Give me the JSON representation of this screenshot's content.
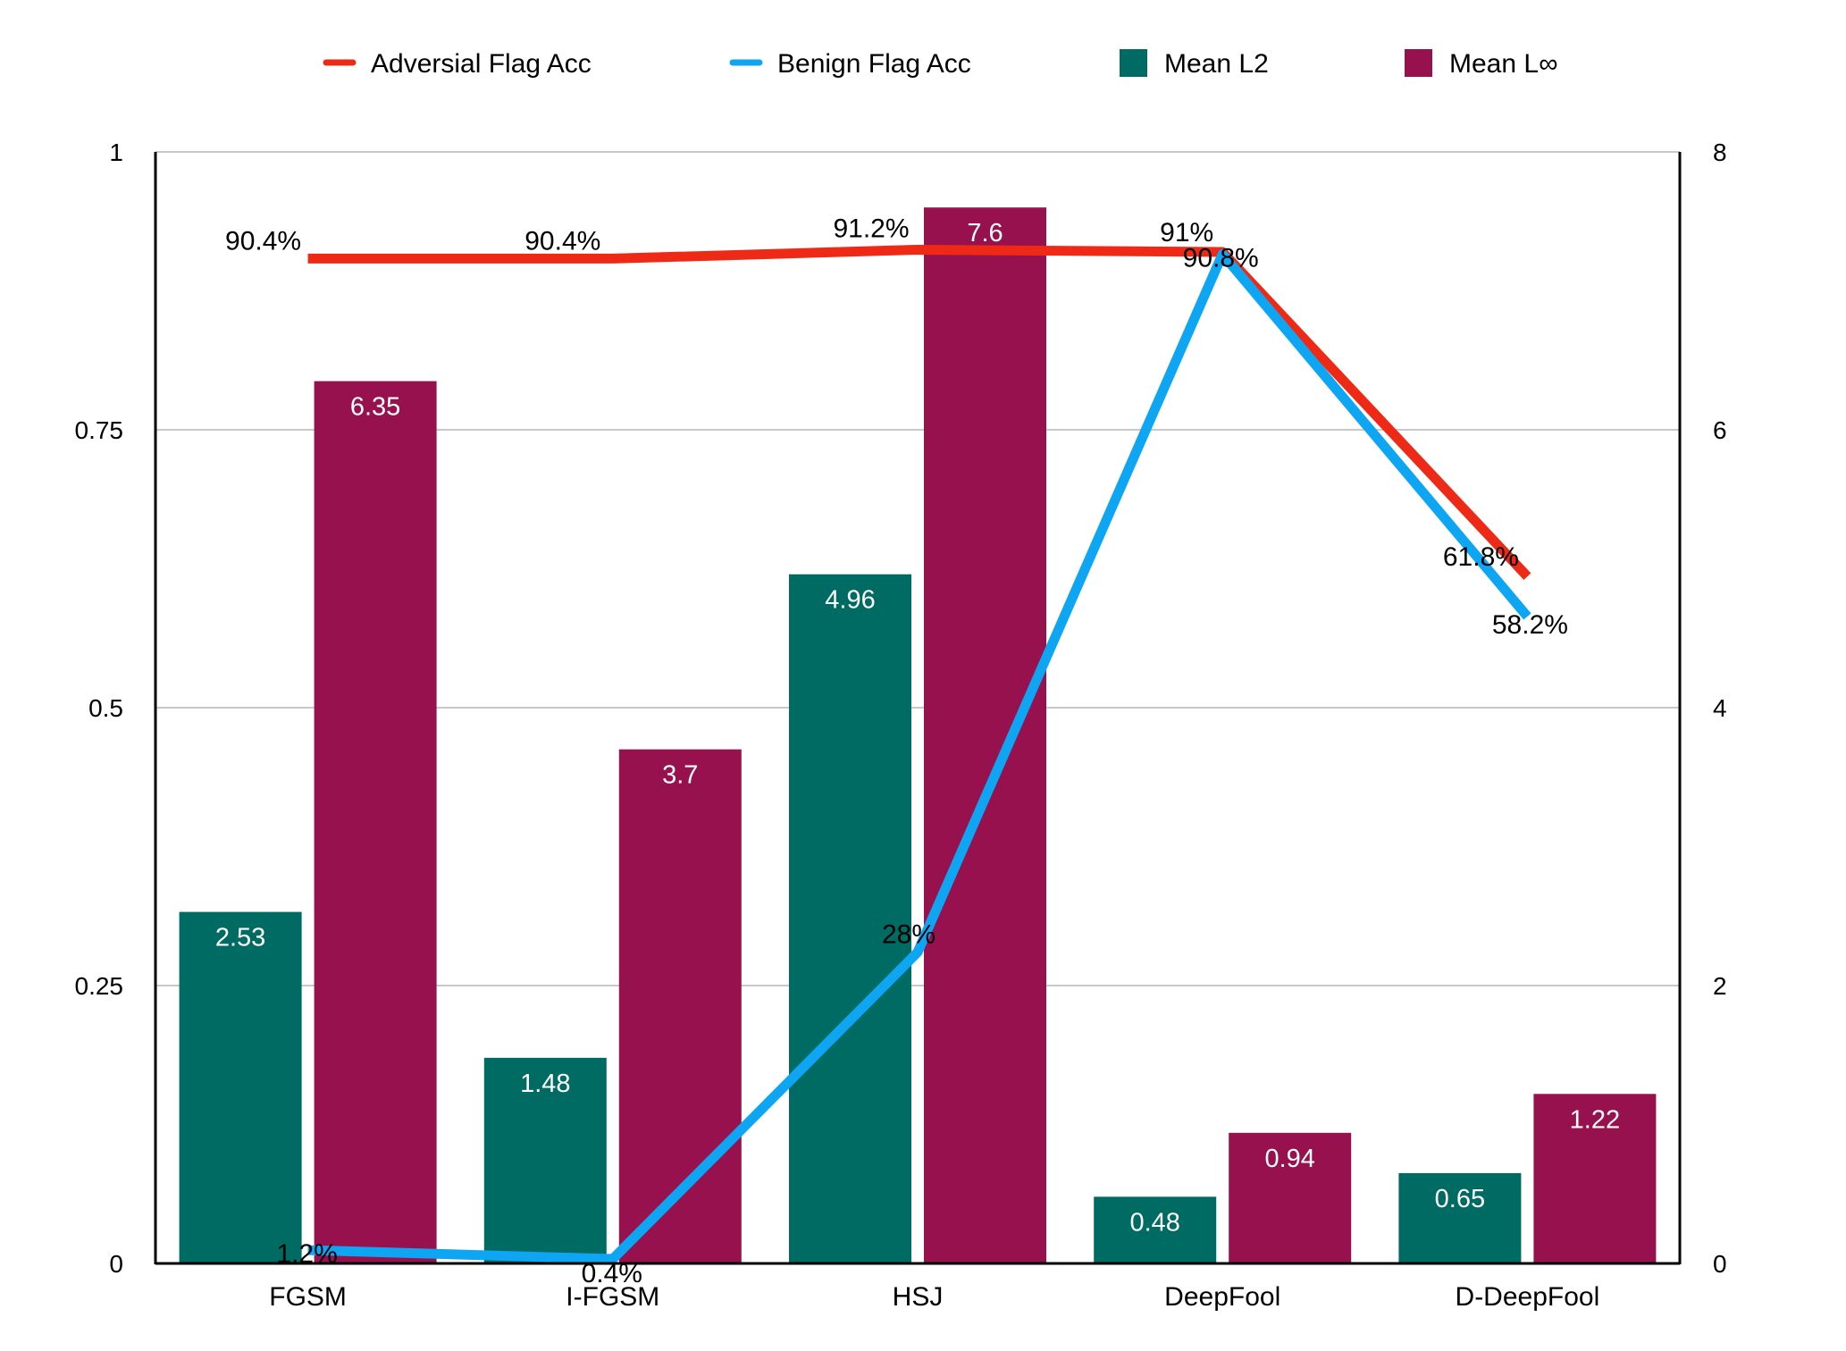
{
  "chart_data": {
    "type": "bar",
    "categories": [
      "FGSM",
      "I-FGSM",
      "HSJ",
      "DeepFool",
      "D-DeepFool"
    ],
    "left_axis": {
      "range": [
        0,
        1
      ],
      "ticks": [
        "0",
        "0.25",
        "0.5",
        "0.75",
        "1"
      ]
    },
    "right_axis": {
      "range": [
        0,
        8
      ],
      "ticks": [
        "0",
        "2",
        "4",
        "6",
        "8"
      ]
    },
    "grid": true,
    "legend_position": "top",
    "bar_series": [
      {
        "name": "Mean L2",
        "color": "#006b63",
        "axis": "right",
        "values": [
          2.53,
          1.48,
          4.96,
          0.48,
          0.65
        ],
        "labels": [
          "2.53",
          "1.48",
          "4.96",
          "0.48",
          "0.65"
        ]
      },
      {
        "name": "Mean L∞",
        "color": "#97114f",
        "axis": "right",
        "values": [
          6.35,
          3.7,
          7.6,
          0.94,
          1.22
        ],
        "labels": [
          "6.35",
          "3.7",
          "7.6",
          "0.94",
          "1.22"
        ]
      }
    ],
    "line_series": [
      {
        "name": "Adversial Flag Acc",
        "color": "#ee2a17",
        "axis": "left",
        "values": [
          0.904,
          0.904,
          0.912,
          0.91,
          0.618
        ],
        "labels": [
          "90.4%",
          "90.4%",
          "91.2%",
          "91%",
          "61.8%"
        ]
      },
      {
        "name": "Benign Flag Acc",
        "color": "#0ea5f2",
        "axis": "left",
        "values": [
          0.012,
          0.004,
          0.28,
          0.908,
          0.582
        ],
        "labels": [
          "1.2%",
          "0.4%",
          "28%",
          "90.8%",
          "58.2%"
        ]
      }
    ]
  }
}
